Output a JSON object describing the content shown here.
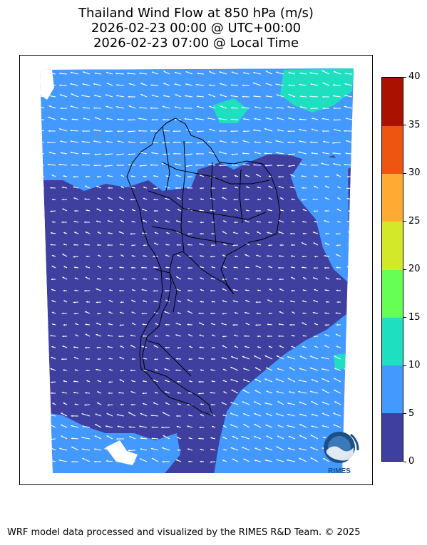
{
  "title": {
    "line1": "Thailand Wind Flow at 850 hPa (m/s)",
    "line2": "2026-02-23 00:00 @ UTC+00:00",
    "line3": "2026-02-23 07:00 @ Local Time"
  },
  "colorbar": {
    "ticks": [
      "0",
      "5",
      "10",
      "15",
      "20",
      "25",
      "30",
      "35",
      "40"
    ],
    "bins": [
      {
        "from": 0,
        "to": 5,
        "color": "#3f3f9f"
      },
      {
        "from": 5,
        "to": 10,
        "color": "#4499ff"
      },
      {
        "from": 10,
        "to": 15,
        "color": "#1ee0c0"
      },
      {
        "from": 15,
        "to": 20,
        "color": "#66ff55"
      },
      {
        "from": 20,
        "to": 25,
        "color": "#d4e82a"
      },
      {
        "from": 25,
        "to": 30,
        "color": "#ffaa33"
      },
      {
        "from": 30,
        "to": 35,
        "color": "#ee5511"
      },
      {
        "from": 35,
        "to": 40,
        "color": "#aa1100"
      }
    ]
  },
  "logo": {
    "text": "RIMES",
    "icon": "rimes-logo-icon"
  },
  "footer": "WRF model data processed and visualized by the RIMES R&D Team. © 2025",
  "colors": {
    "low_wind": "#3f3f9f",
    "mid_wind": "#4499ff",
    "high_wind": "#1ee0c0",
    "border": "#000000",
    "arrow": "#ffffff"
  }
}
